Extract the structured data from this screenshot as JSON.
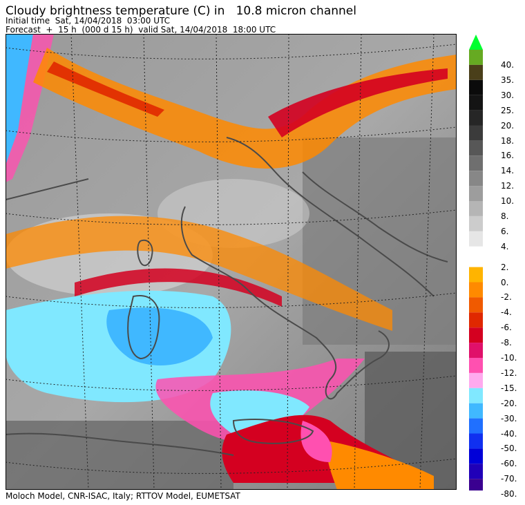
{
  "header": {
    "title": "Cloudy brightness temperature (C) in   10.8 micron channel",
    "initial_time": "Initial time  Sat, 14/04/2018  03:00 UTC",
    "forecast": "Forecast  +  15 h  (000 d 15 h)  valid Sat, 14/04/2018  18:00 UTC"
  },
  "footer": {
    "credit": "Moloch Model, CNR-ISAC, Italy; RTTOV Model, EUMETSAT"
  },
  "legend": {
    "unit": "C",
    "entries": [
      {
        "label": "40.",
        "color": "#66aa22"
      },
      {
        "label": "35.",
        "color": "#4a3f1a"
      },
      {
        "label": "30.",
        "color": "#0b0b0b"
      },
      {
        "label": "25.",
        "color": "#141414"
      },
      {
        "label": "20.",
        "color": "#262626"
      },
      {
        "label": "18.",
        "color": "#3b3b3b"
      },
      {
        "label": "16.",
        "color": "#575757"
      },
      {
        "label": "14.",
        "color": "#6f6f6f"
      },
      {
        "label": "12.",
        "color": "#878787"
      },
      {
        "label": "10.",
        "color": "#9d9d9d"
      },
      {
        "label": "8.",
        "color": "#b5b5b5"
      },
      {
        "label": "6.",
        "color": "#cccccc"
      },
      {
        "label": "4.",
        "color": "#e6e6e6"
      },
      {
        "label": "2.",
        "color": "#ffffff"
      },
      {
        "label": "0.",
        "color": "#ffb400"
      },
      {
        "label": "-2.",
        "color": "#ff8a00"
      },
      {
        "label": "-4.",
        "color": "#f05a00"
      },
      {
        "label": "-6.",
        "color": "#e02800"
      },
      {
        "label": "-8.",
        "color": "#d40020"
      },
      {
        "label": "-10.",
        "color": "#e0106a"
      },
      {
        "label": "-12.",
        "color": "#ff50b0"
      },
      {
        "label": "-15.",
        "color": "#ffaaee"
      },
      {
        "label": "-20.",
        "color": "#80e8ff"
      },
      {
        "label": "-30.",
        "color": "#40b8ff"
      },
      {
        "label": "-40.",
        "color": "#2070ff"
      },
      {
        "label": "-50.",
        "color": "#1030f0"
      },
      {
        "label": "-60.",
        "color": "#0000d8"
      },
      {
        "label": "-70.",
        "color": "#2000b8"
      },
      {
        "label": "-80.",
        "color": "#3a0090"
      }
    ],
    "top_arrow_color": "#00ff30",
    "bottom_arrow_color": "#3a0090"
  }
}
